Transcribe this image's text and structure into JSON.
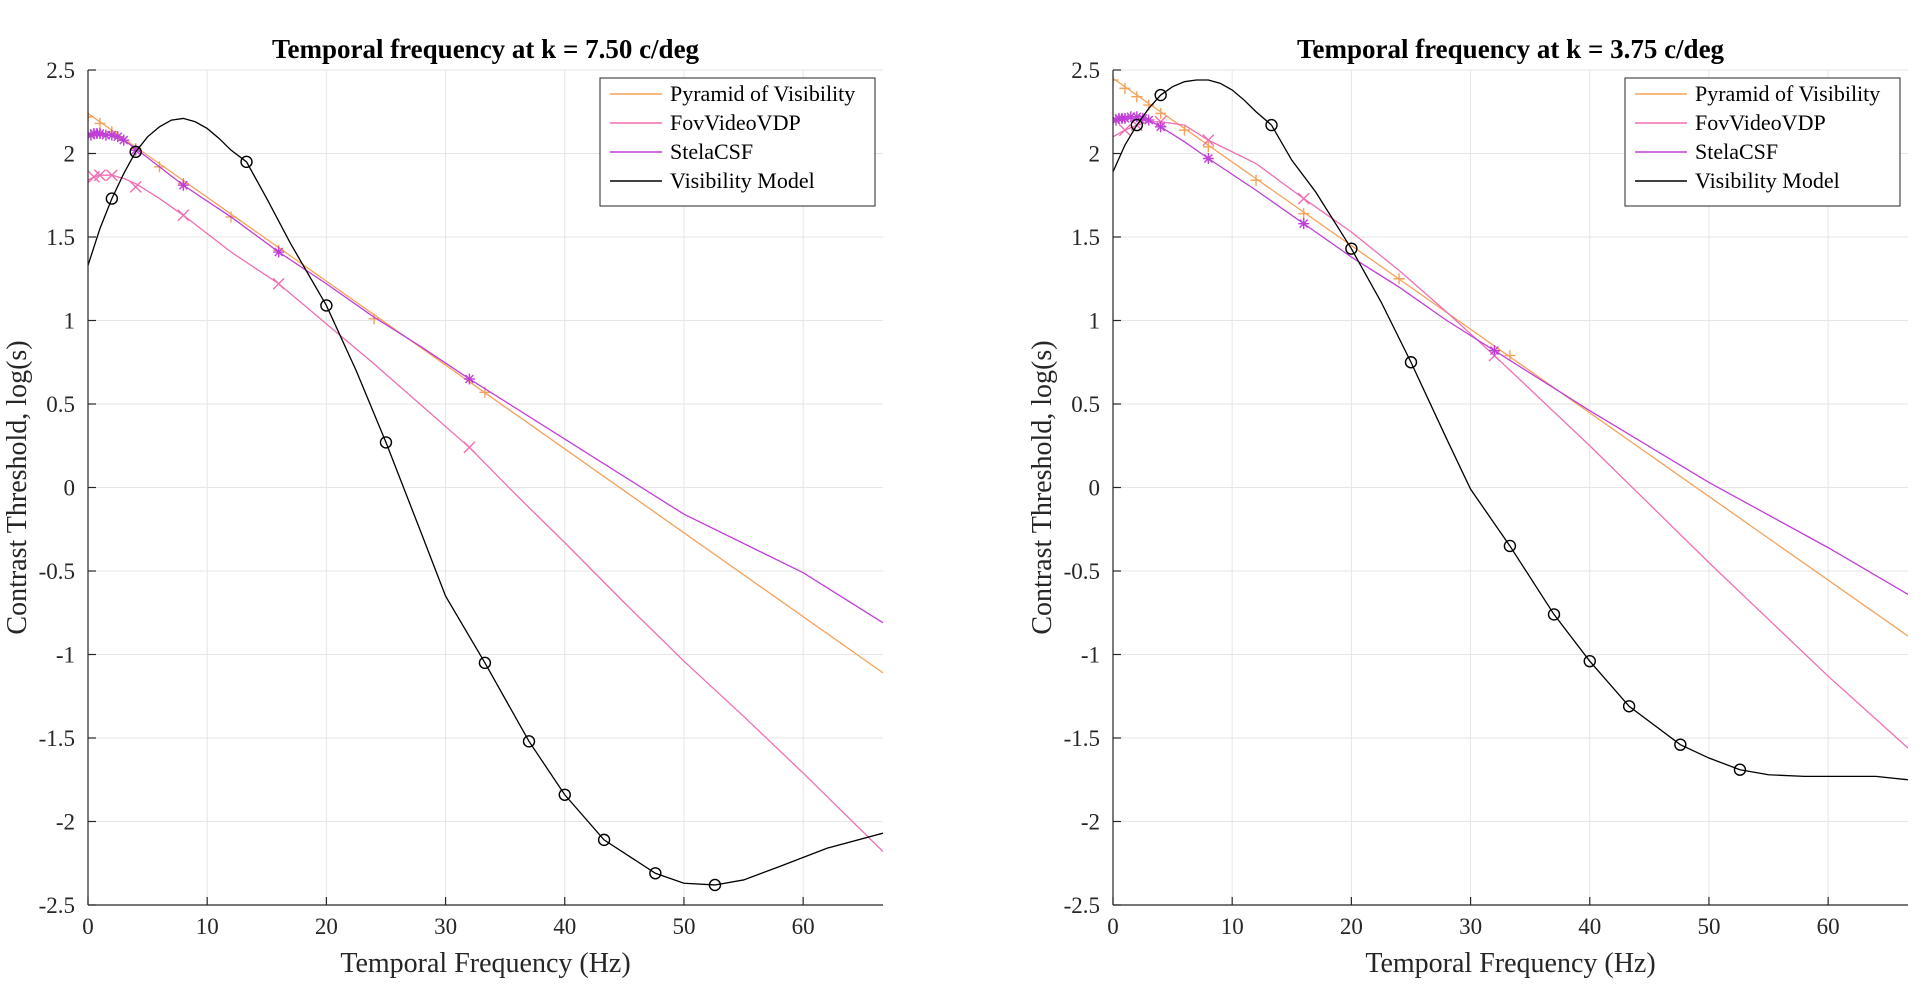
{
  "chart_data": [
    {
      "type": "line",
      "title": "Temporal frequency at k = 7.50 c/deg",
      "xlabel": "Temporal Frequency (Hz)",
      "ylabel": "Contrast Threshold, log(s)",
      "xlim": [
        0,
        66.7
      ],
      "ylim": [
        -2.5,
        2.5
      ],
      "xticks": [
        0,
        10,
        20,
        30,
        40,
        50,
        60
      ],
      "yticks": [
        -2.5,
        -2,
        -1.5,
        -1,
        -0.5,
        0,
        0.5,
        1,
        1.5,
        2,
        2.5
      ],
      "grid": true,
      "legend_position": "top-right",
      "series": [
        {
          "name": "Pyramid of Visibility",
          "color": "#f5a25a",
          "marker": "plus",
          "line": [
            [
              0,
              2.24
            ],
            [
              66.7,
              -1.11
            ]
          ],
          "markers": [
            [
              0,
              2.22
            ],
            [
              1,
              2.18
            ],
            [
              2,
              2.13
            ],
            [
              3,
              2.08
            ],
            [
              4,
              2.03
            ],
            [
              6,
              1.92
            ],
            [
              8,
              1.82
            ],
            [
              12,
              1.62
            ],
            [
              16,
              1.42
            ],
            [
              24,
              1.01
            ],
            [
              33.3,
              0.57
            ]
          ]
        },
        {
          "name": "FovVideoVDP",
          "color": "#f06eb4",
          "marker": "x",
          "line": [
            [
              0,
              1.84
            ],
            [
              0.5,
              1.86
            ],
            [
              1,
              1.87
            ],
            [
              2,
              1.87
            ],
            [
              3,
              1.85
            ],
            [
              4,
              1.82
            ],
            [
              6,
              1.73
            ],
            [
              8,
              1.63
            ],
            [
              10,
              1.52
            ],
            [
              12,
              1.41
            ],
            [
              16,
              1.22
            ],
            [
              20,
              0.98
            ],
            [
              24,
              0.74
            ],
            [
              28,
              0.49
            ],
            [
              32,
              0.24
            ],
            [
              36,
              -0.05
            ],
            [
              40,
              -0.33
            ],
            [
              45,
              -0.69
            ],
            [
              50,
              -1.04
            ],
            [
              55,
              -1.37
            ],
            [
              60,
              -1.71
            ],
            [
              66.7,
              -2.18
            ]
          ],
          "markers": [
            [
              0.5,
              1.86
            ],
            [
              1,
              1.87
            ],
            [
              2,
              1.87
            ],
            [
              4,
              1.8
            ],
            [
              8,
              1.63
            ],
            [
              16,
              1.22
            ],
            [
              32,
              0.24
            ]
          ]
        },
        {
          "name": "StelaCSF",
          "color": "#c03fd8",
          "marker": "asterisk",
          "line": [
            [
              0,
              2.11
            ],
            [
              1,
              2.12
            ],
            [
              2,
              2.11
            ],
            [
              3,
              2.08
            ],
            [
              4,
              2.03
            ],
            [
              6,
              1.92
            ],
            [
              8,
              1.81
            ],
            [
              12,
              1.62
            ],
            [
              16,
              1.41
            ],
            [
              20,
              1.22
            ],
            [
              24,
              1.02
            ],
            [
              28,
              0.84
            ],
            [
              32,
              0.65
            ],
            [
              40,
              0.29
            ],
            [
              50,
              -0.16
            ],
            [
              60,
              -0.51
            ],
            [
              66.7,
              -0.81
            ]
          ],
          "markers": [
            [
              0.25,
              2.11
            ],
            [
              0.5,
              2.12
            ],
            [
              0.75,
              2.12
            ],
            [
              1,
              2.12
            ],
            [
              1.5,
              2.11
            ],
            [
              2,
              2.11
            ],
            [
              2.5,
              2.1
            ],
            [
              3,
              2.08
            ],
            [
              4,
              2.02
            ],
            [
              8,
              1.81
            ],
            [
              16,
              1.41
            ],
            [
              32,
              0.65
            ]
          ]
        },
        {
          "name": "Visibility Model",
          "color": "#000000",
          "marker": "circle",
          "line": [
            [
              0,
              1.33
            ],
            [
              1,
              1.55
            ],
            [
              2,
              1.73
            ],
            [
              3,
              1.88
            ],
            [
              4,
              2.01
            ],
            [
              5,
              2.1
            ],
            [
              6,
              2.16
            ],
            [
              7,
              2.2
            ],
            [
              8,
              2.21
            ],
            [
              9,
              2.19
            ],
            [
              10,
              2.15
            ],
            [
              11,
              2.09
            ],
            [
              12,
              2.02
            ],
            [
              13.3,
              1.95
            ],
            [
              15,
              1.73
            ],
            [
              17,
              1.46
            ],
            [
              20,
              1.09
            ],
            [
              22.5,
              0.7
            ],
            [
              25,
              0.27
            ],
            [
              28,
              -0.28
            ],
            [
              30,
              -0.65
            ],
            [
              33.3,
              -1.05
            ],
            [
              37,
              -1.52
            ],
            [
              40,
              -1.84
            ],
            [
              43.3,
              -2.11
            ],
            [
              47.6,
              -2.31
            ],
            [
              50,
              -2.37
            ],
            [
              52.6,
              -2.38
            ],
            [
              55,
              -2.35
            ],
            [
              58,
              -2.27
            ],
            [
              62,
              -2.16
            ],
            [
              66.7,
              -2.07
            ]
          ],
          "markers": [
            [
              2,
              1.73
            ],
            [
              4,
              2.01
            ],
            [
              13.3,
              1.95
            ],
            [
              20,
              1.09
            ],
            [
              25,
              0.27
            ],
            [
              33.3,
              -1.05
            ],
            [
              37,
              -1.52
            ],
            [
              40,
              -1.84
            ],
            [
              43.3,
              -2.11
            ],
            [
              47.6,
              -2.31
            ],
            [
              52.6,
              -2.38
            ]
          ]
        }
      ]
    },
    {
      "type": "line",
      "title": "Temporal frequency at k = 3.75 c/deg",
      "xlabel": "Temporal Frequency (Hz)",
      "ylabel": "Contrast Threshold, log(s)",
      "xlim": [
        0,
        66.7
      ],
      "ylim": [
        -2.5,
        2.5
      ],
      "xticks": [
        0,
        10,
        20,
        30,
        40,
        50,
        60
      ],
      "yticks": [
        -2.5,
        -2,
        -1.5,
        -1,
        -0.5,
        0,
        0.5,
        1,
        1.5,
        2,
        2.5
      ],
      "grid": true,
      "legend_position": "top-right",
      "series": [
        {
          "name": "Pyramid of Visibility",
          "color": "#f5a25a",
          "marker": "plus",
          "line": [
            [
              0,
              2.45
            ],
            [
              66.7,
              -0.89
            ]
          ],
          "markers": [
            [
              0,
              2.44
            ],
            [
              1,
              2.39
            ],
            [
              2,
              2.34
            ],
            [
              3,
              2.29
            ],
            [
              4,
              2.24
            ],
            [
              6,
              2.14
            ],
            [
              8,
              2.04
            ],
            [
              12,
              1.84
            ],
            [
              16,
              1.64
            ],
            [
              24,
              1.25
            ],
            [
              33.3,
              0.79
            ]
          ]
        },
        {
          "name": "FovVideoVDP",
          "color": "#f06eb4",
          "marker": "x",
          "line": [
            [
              0,
              2.1
            ],
            [
              1,
              2.14
            ],
            [
              2,
              2.17
            ],
            [
              3,
              2.19
            ],
            [
              4,
              2.19
            ],
            [
              6,
              2.17
            ],
            [
              8,
              2.08
            ],
            [
              12,
              1.94
            ],
            [
              16,
              1.73
            ],
            [
              20,
              1.53
            ],
            [
              24,
              1.3
            ],
            [
              28,
              1.05
            ],
            [
              32,
              0.79
            ],
            [
              36,
              0.52
            ],
            [
              40,
              0.25
            ],
            [
              45,
              -0.1
            ],
            [
              50,
              -0.45
            ],
            [
              55,
              -0.79
            ],
            [
              60,
              -1.13
            ],
            [
              66.7,
              -1.56
            ]
          ],
          "markers": [
            [
              1,
              2.14
            ],
            [
              2,
              2.17
            ],
            [
              4,
              2.19
            ],
            [
              8,
              2.08
            ],
            [
              16,
              1.73
            ],
            [
              32,
              0.79
            ]
          ]
        },
        {
          "name": "StelaCSF",
          "color": "#c03fd8",
          "marker": "asterisk",
          "line": [
            [
              0,
              2.2
            ],
            [
              1,
              2.21
            ],
            [
              2,
              2.21
            ],
            [
              3,
              2.2
            ],
            [
              4,
              2.16
            ],
            [
              6,
              2.07
            ],
            [
              8,
              1.97
            ],
            [
              12,
              1.78
            ],
            [
              16,
              1.58
            ],
            [
              20,
              1.38
            ],
            [
              24,
              1.2
            ],
            [
              28,
              1.0
            ],
            [
              32,
              0.82
            ],
            [
              40,
              0.46
            ],
            [
              50,
              0.03
            ],
            [
              60,
              -0.36
            ],
            [
              66.7,
              -0.64
            ]
          ],
          "markers": [
            [
              0.25,
              2.2
            ],
            [
              0.5,
              2.21
            ],
            [
              0.75,
              2.21
            ],
            [
              1,
              2.21
            ],
            [
              1.5,
              2.22
            ],
            [
              2,
              2.22
            ],
            [
              2.5,
              2.21
            ],
            [
              3,
              2.2
            ],
            [
              4,
              2.16
            ],
            [
              8,
              1.97
            ],
            [
              16,
              1.58
            ],
            [
              32,
              0.82
            ]
          ]
        },
        {
          "name": "Visibility Model",
          "color": "#000000",
          "marker": "circle",
          "line": [
            [
              0,
              1.89
            ],
            [
              1,
              2.05
            ],
            [
              2,
              2.17
            ],
            [
              3,
              2.27
            ],
            [
              4,
              2.35
            ],
            [
              5,
              2.4
            ],
            [
              6,
              2.43
            ],
            [
              7,
              2.44
            ],
            [
              8,
              2.44
            ],
            [
              9,
              2.42
            ],
            [
              10,
              2.38
            ],
            [
              11,
              2.32
            ],
            [
              12,
              2.25
            ],
            [
              13.3,
              2.17
            ],
            [
              15,
              1.96
            ],
            [
              17,
              1.77
            ],
            [
              20,
              1.43
            ],
            [
              22.5,
              1.11
            ],
            [
              25,
              0.75
            ],
            [
              28,
              0.29
            ],
            [
              30,
              -0.01
            ],
            [
              33.3,
              -0.35
            ],
            [
              37,
              -0.76
            ],
            [
              40,
              -1.04
            ],
            [
              43.3,
              -1.31
            ],
            [
              47.6,
              -1.54
            ],
            [
              50,
              -1.62
            ],
            [
              52.6,
              -1.69
            ],
            [
              55,
              -1.72
            ],
            [
              58,
              -1.73
            ],
            [
              62,
              -1.73
            ],
            [
              64,
              -1.73
            ],
            [
              66.7,
              -1.75
            ]
          ],
          "markers": [
            [
              2,
              2.17
            ],
            [
              4,
              2.35
            ],
            [
              13.3,
              2.17
            ],
            [
              20,
              1.43
            ],
            [
              25,
              0.75
            ],
            [
              33.3,
              -0.35
            ],
            [
              37,
              -0.76
            ],
            [
              40,
              -1.04
            ],
            [
              43.3,
              -1.31
            ],
            [
              47.6,
              -1.54
            ],
            [
              52.6,
              -1.69
            ]
          ]
        }
      ]
    }
  ]
}
